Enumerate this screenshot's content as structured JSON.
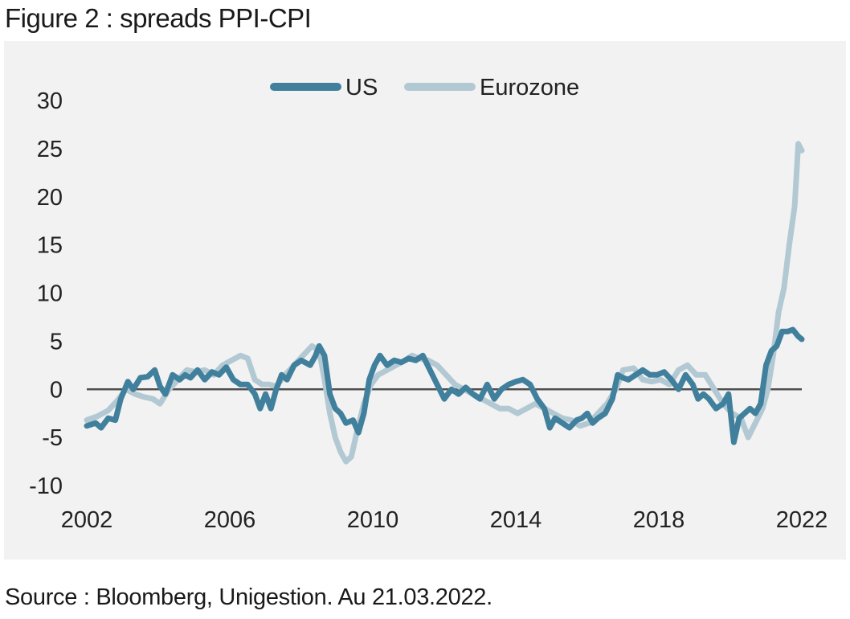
{
  "figure_title": "Figure 2 : spreads PPI-CPI",
  "source": "Source : Bloomberg, Unigestion. Au 21.03.2022.",
  "colors": {
    "US": "#41809c",
    "Eurozone": "#b2c9d3",
    "zero_line": "#505050",
    "background": "#f2f2f2"
  },
  "chart_data": {
    "type": "line",
    "title": "",
    "xlabel": "",
    "ylabel": "",
    "xlim": [
      2002,
      2022
    ],
    "ylim": [
      -10,
      30
    ],
    "x_ticks": [
      "2002",
      "2006",
      "2010",
      "2014",
      "2018",
      "2022"
    ],
    "y_ticks": [
      "30",
      "25",
      "20",
      "15",
      "10",
      "5",
      "0",
      "-5",
      "-10"
    ],
    "grid": false,
    "legend": "top-center",
    "series": [
      {
        "name": "US",
        "x": [
          2002.0,
          2002.25,
          2002.4,
          2002.6,
          2002.8,
          2002.95,
          2003.15,
          2003.3,
          2003.5,
          2003.7,
          2003.9,
          2004.05,
          2004.2,
          2004.4,
          2004.6,
          2004.75,
          2004.9,
          2005.1,
          2005.3,
          2005.5,
          2005.7,
          2005.9,
          2006.1,
          2006.3,
          2006.5,
          2006.7,
          2006.85,
          2007.0,
          2007.15,
          2007.3,
          2007.45,
          2007.6,
          2007.8,
          2008.0,
          2008.25,
          2008.4,
          2008.5,
          2008.65,
          2008.8,
          2008.95,
          2009.1,
          2009.25,
          2009.45,
          2009.6,
          2009.75,
          2009.9,
          2010.05,
          2010.2,
          2010.4,
          2010.6,
          2010.8,
          2011.0,
          2011.2,
          2011.4,
          2011.6,
          2011.8,
          2012.0,
          2012.2,
          2012.4,
          2012.6,
          2012.8,
          2013.0,
          2013.2,
          2013.4,
          2013.6,
          2013.8,
          2014.0,
          2014.2,
          2014.4,
          2014.6,
          2014.8,
          2014.95,
          2015.1,
          2015.3,
          2015.5,
          2015.7,
          2015.85,
          2016.0,
          2016.15,
          2016.3,
          2016.5,
          2016.7,
          2016.85,
          2017.0,
          2017.15,
          2017.35,
          2017.55,
          2017.75,
          2017.95,
          2018.15,
          2018.35,
          2018.55,
          2018.75,
          2018.95,
          2019.1,
          2019.25,
          2019.4,
          2019.6,
          2019.8,
          2019.95,
          2020.1,
          2020.25,
          2020.4,
          2020.55,
          2020.7,
          2020.85,
          2021.0,
          2021.15,
          2021.3,
          2021.45,
          2021.6,
          2021.75,
          2021.9,
          2022.0
        ],
        "values": [
          -3.8,
          -3.5,
          -4.0,
          -3.0,
          -3.2,
          -1.0,
          0.8,
          0.0,
          1.2,
          1.3,
          2.0,
          0.3,
          -0.5,
          1.5,
          1.0,
          1.5,
          1.2,
          2.0,
          1.0,
          1.8,
          1.5,
          2.3,
          1.0,
          0.5,
          0.5,
          -0.5,
          -2.0,
          -0.5,
          -2.0,
          0.0,
          1.5,
          1.0,
          2.5,
          3.0,
          2.5,
          3.5,
          4.5,
          3.5,
          -0.5,
          -2.0,
          -2.5,
          -3.5,
          -3.2,
          -4.5,
          -2.5,
          1.0,
          2.5,
          3.5,
          2.5,
          3.0,
          2.8,
          3.2,
          3.0,
          3.5,
          2.0,
          0.5,
          -1.0,
          0.0,
          -0.5,
          0.2,
          -0.5,
          -1.0,
          0.5,
          -1.0,
          0.0,
          0.5,
          0.8,
          1.0,
          0.5,
          -1.0,
          -2.0,
          -4.0,
          -3.0,
          -3.5,
          -4.0,
          -3.2,
          -3.0,
          -2.5,
          -3.5,
          -3.0,
          -2.5,
          -1.0,
          1.5,
          1.2,
          1.0,
          1.5,
          2.0,
          1.5,
          1.5,
          1.8,
          1.0,
          0.0,
          1.5,
          0.5,
          -1.0,
          -0.5,
          -1.0,
          -2.0,
          -1.5,
          -0.5,
          -5.5,
          -3.0,
          -2.5,
          -2.0,
          -2.5,
          -1.5,
          2.5,
          4.0,
          4.5,
          6.0,
          6.0,
          6.2,
          5.5,
          5.2
        ]
      },
      {
        "name": "Eurozone",
        "x": [
          2002.0,
          2002.3,
          2002.6,
          2002.85,
          2003.1,
          2003.35,
          2003.6,
          2003.85,
          2004.05,
          2004.3,
          2004.55,
          2004.8,
          2005.05,
          2005.3,
          2005.55,
          2005.8,
          2006.05,
          2006.3,
          2006.5,
          2006.7,
          2006.9,
          2007.1,
          2007.3,
          2007.55,
          2007.8,
          2008.05,
          2008.3,
          2008.5,
          2008.65,
          2008.8,
          2008.95,
          2009.1,
          2009.25,
          2009.4,
          2009.55,
          2009.75,
          2009.95,
          2010.15,
          2010.4,
          2010.65,
          2010.9,
          2011.1,
          2011.3,
          2011.55,
          2011.8,
          2012.05,
          2012.3,
          2012.55,
          2012.8,
          2013.05,
          2013.3,
          2013.55,
          2013.8,
          2014.05,
          2014.3,
          2014.55,
          2014.8,
          2015.05,
          2015.3,
          2015.55,
          2015.8,
          2016.05,
          2016.3,
          2016.55,
          2016.8,
          2017.0,
          2017.3,
          2017.55,
          2017.8,
          2018.05,
          2018.3,
          2018.55,
          2018.8,
          2019.05,
          2019.3,
          2019.55,
          2019.8,
          2020.05,
          2020.3,
          2020.5,
          2020.7,
          2020.9,
          2021.05,
          2021.2,
          2021.35,
          2021.5,
          2021.65,
          2021.8,
          2021.9,
          2022.0
        ],
        "values": [
          -3.2,
          -2.8,
          -2.2,
          -1.2,
          0.0,
          -0.5,
          -0.8,
          -1.0,
          -1.5,
          0.0,
          1.0,
          2.0,
          1.8,
          2.0,
          1.5,
          2.5,
          3.0,
          3.5,
          3.2,
          1.0,
          0.5,
          0.5,
          0.3,
          1.5,
          2.5,
          3.5,
          4.5,
          4.0,
          1.0,
          -2.5,
          -5.0,
          -6.5,
          -7.5,
          -7.0,
          -4.5,
          -1.5,
          0.5,
          1.5,
          2.0,
          2.5,
          3.0,
          3.5,
          3.2,
          3.0,
          2.5,
          1.5,
          0.5,
          0.0,
          -0.5,
          -1.0,
          -1.5,
          -2.0,
          -2.0,
          -2.5,
          -2.0,
          -1.5,
          -2.0,
          -2.5,
          -3.0,
          -3.2,
          -3.8,
          -3.5,
          -2.5,
          -1.5,
          0.0,
          2.0,
          2.2,
          1.0,
          0.8,
          1.0,
          0.5,
          2.0,
          2.5,
          1.5,
          1.5,
          0.0,
          -1.5,
          -2.5,
          -3.0,
          -5.0,
          -3.5,
          -2.0,
          0.0,
          3.5,
          8.0,
          10.5,
          15.0,
          19.0,
          25.5,
          24.8
        ]
      }
    ]
  }
}
